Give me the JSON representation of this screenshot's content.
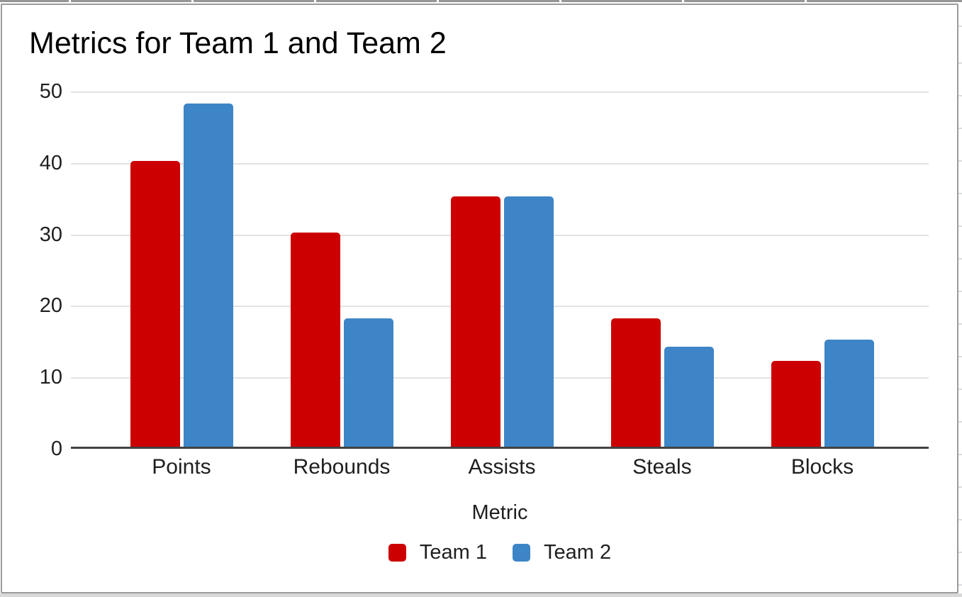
{
  "chart_data": {
    "type": "bar",
    "title": "Metrics for Team 1 and Team 2",
    "xlabel": "Metric",
    "ylabel": "",
    "categories": [
      "Points",
      "Rebounds",
      "Assists",
      "Steals",
      "Blocks"
    ],
    "series": [
      {
        "name": "Team 1",
        "color": "#cc0000",
        "values": [
          40,
          30,
          35,
          18,
          12
        ]
      },
      {
        "name": "Team 2",
        "color": "#3d85c6",
        "values": [
          48,
          18,
          35,
          14,
          15
        ]
      }
    ],
    "ylim": [
      0,
      50
    ],
    "yticks": [
      0,
      10,
      20,
      30,
      40,
      50
    ],
    "grid": true,
    "legend_position": "bottom"
  },
  "colors": {
    "series_team1": "#cc0000",
    "series_team2": "#3d85c6",
    "gridline": "#e3e3e3",
    "axis_baseline": "#424242",
    "chart_border": "#9b9b9b",
    "text": "#1f1f1f",
    "title_text": "#000000",
    "sheet_edge_gray": "#969696"
  }
}
